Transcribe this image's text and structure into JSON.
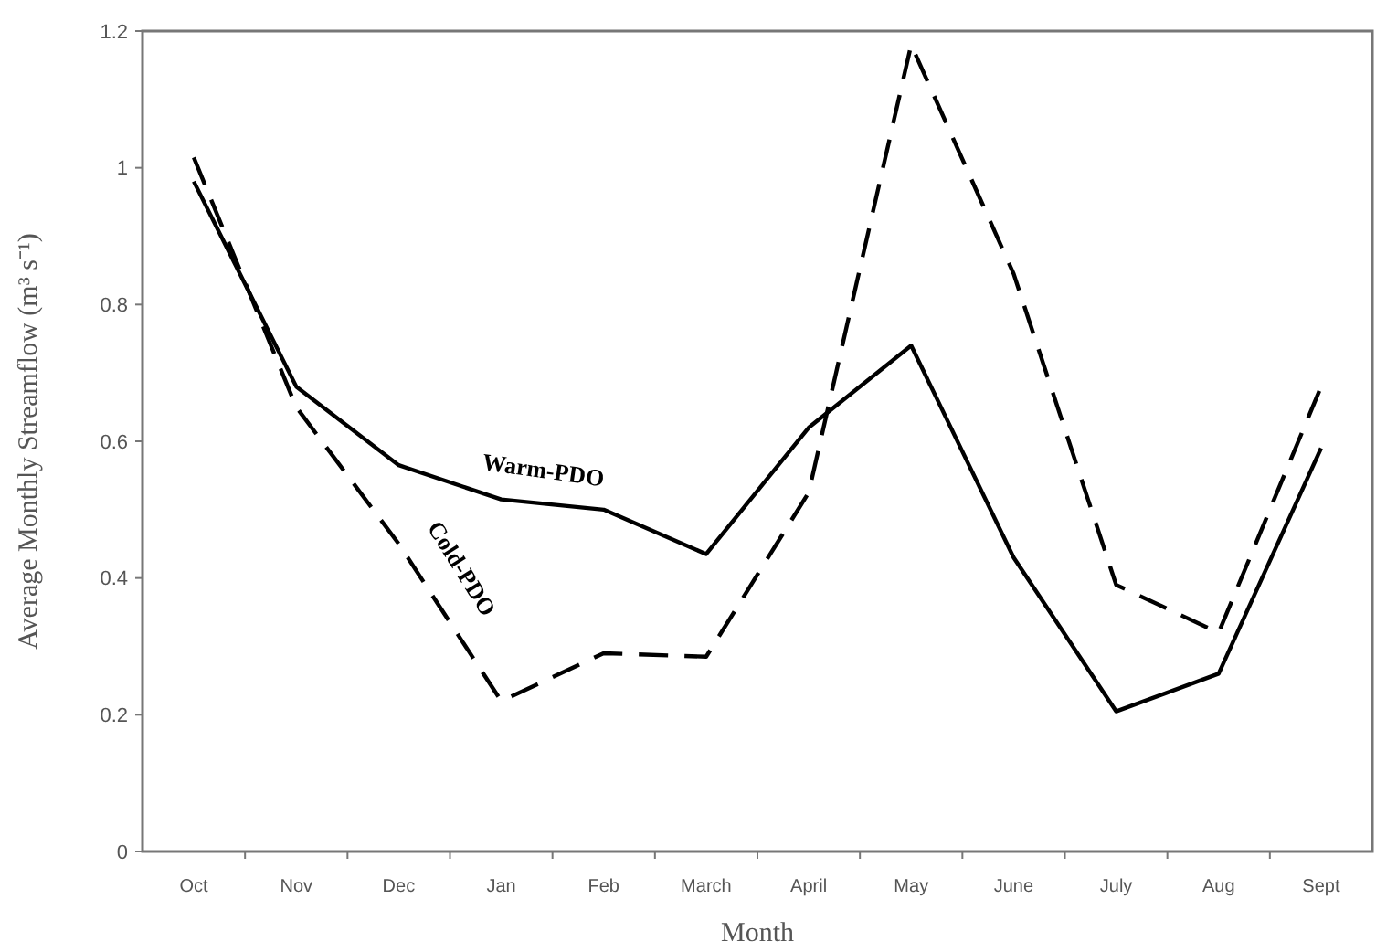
{
  "chart_data": {
    "type": "line",
    "xlabel": "Month",
    "ylabel": "Average Monthly Streamflow (m³ s⁻¹)",
    "categories": [
      "Oct",
      "Nov",
      "Dec",
      "Jan",
      "Feb",
      "March",
      "April",
      "May",
      "June",
      "July",
      "Aug",
      "Sept"
    ],
    "series": [
      {
        "name": "Warm-PDO",
        "color": "#000000",
        "line_style": "solid",
        "values": [
          0.98,
          0.68,
          0.565,
          0.515,
          0.5,
          0.435,
          0.62,
          0.74,
          0.43,
          0.205,
          0.26,
          0.59
        ]
      },
      {
        "name": "Cold-PDO",
        "color": "#000000",
        "line_style": "dashed",
        "values": [
          1.015,
          0.65,
          0.45,
          0.22,
          0.29,
          0.285,
          0.525,
          1.18,
          0.845,
          0.39,
          0.32,
          0.68
        ]
      }
    ],
    "ylim": [
      0,
      1.2
    ],
    "yticks": [
      0,
      0.2,
      0.4,
      0.6,
      0.8,
      1,
      1.2
    ],
    "grid": false
  }
}
